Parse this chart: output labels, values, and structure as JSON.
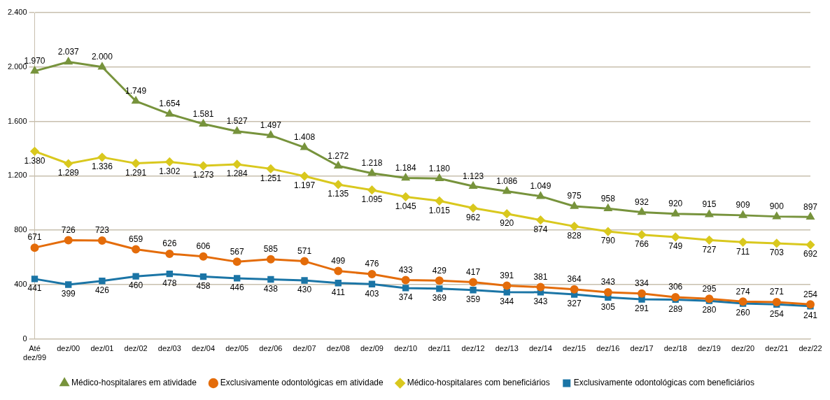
{
  "chart_data": {
    "type": "line",
    "categories": [
      "Até dez/99",
      "dez/00",
      "dez/01",
      "dez/02",
      "dez/03",
      "dez/04",
      "dez/05",
      "dez/06",
      "dez/07",
      "dez/08",
      "dez/09",
      "dez/10",
      "dez/11",
      "dez/12",
      "dez/13",
      "dez/14",
      "dez/15",
      "dez/16",
      "dez/17",
      "dez/18",
      "dez/19",
      "dez/20",
      "dez/21",
      "dez/22"
    ],
    "series": [
      {
        "name": "Médico-hospitalares em atividade",
        "color": "#77933c",
        "marker": "triangle",
        "values": [
          1970,
          2037,
          2000,
          1749,
          1654,
          1581,
          1527,
          1497,
          1408,
          1272,
          1218,
          1184,
          1180,
          1123,
          1086,
          1049,
          975,
          958,
          932,
          920,
          915,
          909,
          900,
          897
        ],
        "value_labels": [
          "1.970",
          "2.037",
          "2.000",
          "1.749",
          "1.654",
          "1.581",
          "1.527",
          "1.497",
          "1.408",
          "1.272",
          "1.218",
          "1.184",
          "1.180",
          "1.123",
          "1.086",
          "1.049",
          "975",
          "958",
          "932",
          "920",
          "915",
          "909",
          "900",
          "897"
        ]
      },
      {
        "name": "Exclusivamente odontológicas em atividade",
        "color": "#e46c0a",
        "marker": "circle",
        "values": [
          671,
          726,
          723,
          659,
          626,
          606,
          567,
          585,
          571,
          499,
          476,
          433,
          429,
          417,
          391,
          381,
          364,
          343,
          334,
          306,
          295,
          274,
          271,
          254
        ],
        "value_labels": [
          "671",
          "726",
          "723",
          "659",
          "626",
          "606",
          "567",
          "585",
          "571",
          "499",
          "476",
          "433",
          "429",
          "417",
          "391",
          "381",
          "364",
          "343",
          "334",
          "306",
          "295",
          "274",
          "271",
          "254"
        ]
      },
      {
        "name": "Médico-hospitalares com beneficiários",
        "color": "#d9c81e",
        "marker": "diamond",
        "values": [
          1380,
          1289,
          1336,
          1291,
          1302,
          1273,
          1284,
          1251,
          1197,
          1135,
          1095,
          1045,
          1015,
          962,
          920,
          874,
          828,
          790,
          766,
          749,
          727,
          711,
          703,
          692
        ],
        "value_labels": [
          "1.380",
          "1.289",
          "1.336",
          "1.291",
          "1.302",
          "1.273",
          "1.284",
          "1.251",
          "1.197",
          "1.135",
          "1.095",
          "1.045",
          "1.015",
          "962",
          "920",
          "874",
          "828",
          "790",
          "766",
          "749",
          "727",
          "711",
          "703",
          "692"
        ]
      },
      {
        "name": "Exclusivamente odontológicas com beneficiários",
        "color": "#1b75a6",
        "marker": "square",
        "values": [
          441,
          399,
          426,
          460,
          478,
          458,
          446,
          438,
          430,
          411,
          403,
          374,
          369,
          359,
          344,
          343,
          327,
          305,
          291,
          289,
          280,
          260,
          254,
          241
        ],
        "value_labels": [
          "441",
          "399",
          "426",
          "460",
          "478",
          "458",
          "446",
          "438",
          "430",
          "411",
          "403",
          "374",
          "369",
          "359",
          "344",
          "343",
          "327",
          "305",
          "291",
          "289",
          "280",
          "260",
          "254",
          "241"
        ]
      }
    ],
    "ylim": [
      0,
      2400
    ],
    "yticks": [
      {
        "value": 0,
        "label": "0"
      },
      {
        "value": 400,
        "label": "400"
      },
      {
        "value": 800,
        "label": "800"
      },
      {
        "value": 1200,
        "label": "1.200"
      },
      {
        "value": 1600,
        "label": "1.600"
      },
      {
        "value": 2000,
        "label": "2.000"
      },
      {
        "value": 2400,
        "label": "2.400"
      }
    ],
    "grid": "y",
    "legend": "bottom"
  }
}
